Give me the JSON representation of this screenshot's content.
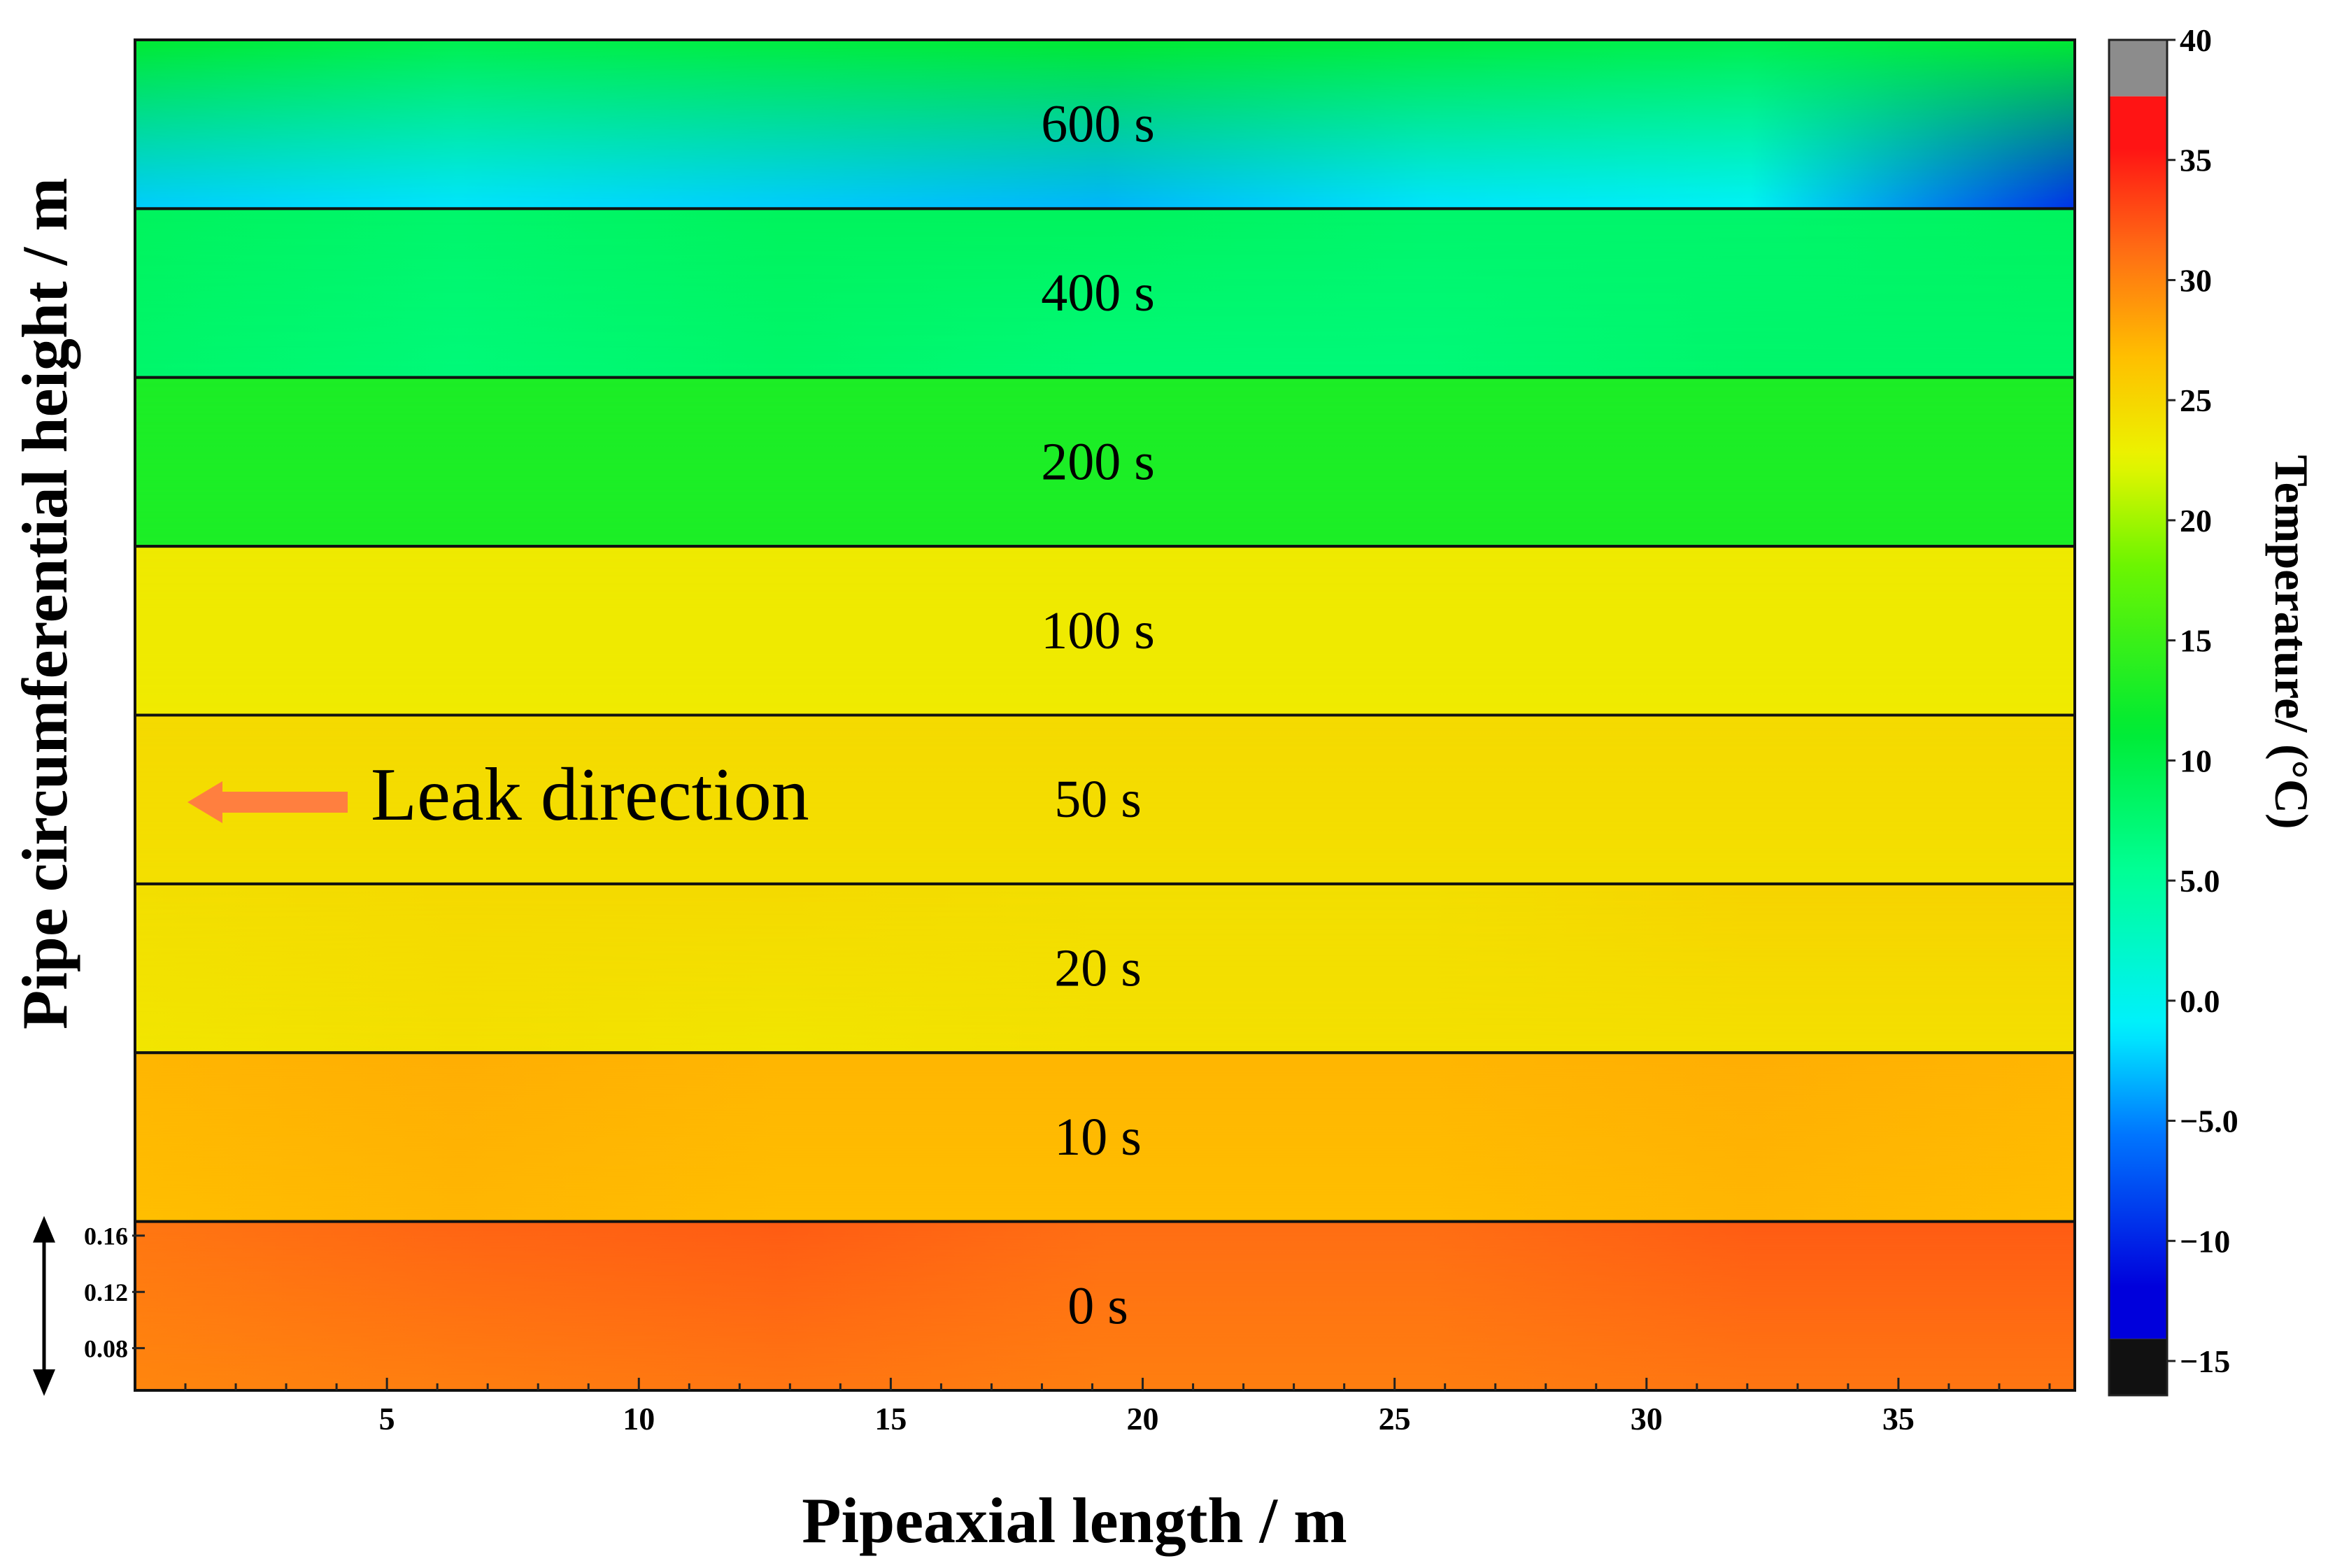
{
  "chart_data": {
    "type": "heatmap",
    "xlabel": "Pipeaxial length / m",
    "ylabel": "Pipe circumferential height / m",
    "xlim": [
      0,
      38.5
    ],
    "x_ticks": [
      5,
      10,
      15,
      20,
      25,
      30,
      35
    ],
    "y_ticks": [
      0.08,
      0.12,
      0.16
    ],
    "y_ticks_panel": "0 s",
    "panel_ylim": [
      0.05,
      0.17
    ],
    "annotation": "Leak direction",
    "colorbar": {
      "label": "Temperature/ (°C)",
      "ticks": [
        "40",
        "35",
        "30",
        "25",
        "20",
        "15",
        "10",
        "5.0",
        "0.0",
        "−5.0",
        "−10",
        "−15"
      ],
      "range": [
        -17.5,
        42.5
      ]
    },
    "panels": [
      {
        "label": "600 s",
        "temps_top": [
          12,
          10,
          11,
          12,
          11,
          10,
          12
        ],
        "temps_bottom": [
          -4,
          -3,
          -4,
          -5,
          -3,
          -2,
          -12
        ]
      },
      {
        "label": "400 s",
        "temps_top": [
          9,
          8,
          9,
          9,
          8,
          8,
          9
        ],
        "temps_bottom": [
          8,
          7,
          8,
          7,
          7,
          8,
          8
        ]
      },
      {
        "label": "200 s",
        "temps_top": [
          14,
          14,
          14,
          14,
          14,
          14,
          14
        ],
        "temps_bottom": [
          14,
          14,
          14,
          14,
          14,
          14,
          14
        ]
      },
      {
        "label": "100 s",
        "temps_top": [
          26,
          26,
          26,
          26,
          26,
          26,
          26
        ],
        "temps_bottom": [
          26,
          26,
          26,
          26,
          26,
          26,
          26
        ]
      },
      {
        "label": "50 s",
        "temps_top": [
          27.5,
          27.5,
          27.5,
          27.5,
          27.5,
          27.5,
          27.5
        ],
        "temps_bottom": [
          27,
          27,
          27,
          27,
          27,
          27,
          27
        ]
      },
      {
        "label": "20 s",
        "temps_top": [
          27,
          27.5,
          27.5,
          27,
          27,
          28,
          28
        ],
        "temps_bottom": [
          26.5,
          27,
          26.5,
          27,
          27,
          27,
          27
        ]
      },
      {
        "label": "10 s",
        "temps_top": [
          30.5,
          31,
          30.5,
          30.5,
          30.5,
          31,
          30.5
        ],
        "temps_bottom": [
          30,
          30.5,
          30,
          30,
          30,
          30.5,
          30
        ]
      },
      {
        "label": "0 s",
        "temps_top": [
          34.5,
          35.5,
          36,
          35,
          35,
          36,
          36
        ],
        "temps_bottom": [
          33.5,
          34,
          34.5,
          34,
          34,
          34.5,
          34.5
        ]
      }
    ]
  }
}
